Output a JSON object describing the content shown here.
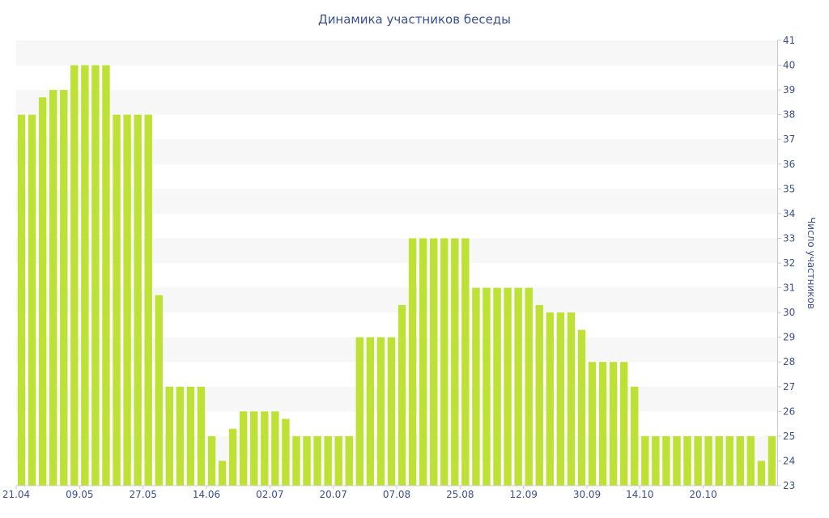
{
  "chart_data": {
    "type": "bar",
    "title": "Динамика участников беседы",
    "ylabel": "Число участников",
    "xlabel": "",
    "ylim": [
      23,
      41
    ],
    "y_ticks": [
      23,
      24,
      25,
      26,
      27,
      28,
      29,
      30,
      31,
      32,
      33,
      34,
      35,
      36,
      37,
      38,
      39,
      40,
      41
    ],
    "x_ticks": [
      {
        "label": "21.04",
        "index": 0
      },
      {
        "label": "09.05",
        "index": 6
      },
      {
        "label": "27.05",
        "index": 12
      },
      {
        "label": "14.06",
        "index": 18
      },
      {
        "label": "02.07",
        "index": 24
      },
      {
        "label": "20.07",
        "index": 30
      },
      {
        "label": "07.08",
        "index": 36
      },
      {
        "label": "25.08",
        "index": 42
      },
      {
        "label": "12.09",
        "index": 48
      },
      {
        "label": "30.09",
        "index": 54
      },
      {
        "label": "14.10",
        "index": 59
      },
      {
        "label": "20.10",
        "index": 65
      }
    ],
    "values": [
      38,
      38,
      38.7,
      39,
      39,
      40,
      40,
      40,
      40,
      38,
      38,
      38,
      38,
      30.7,
      27,
      27,
      27,
      27,
      25,
      24,
      25.3,
      26,
      26,
      26,
      26,
      25.7,
      25,
      25,
      25,
      25,
      25,
      25,
      29,
      29,
      29,
      29,
      30.3,
      33,
      33,
      33,
      33,
      33,
      33,
      31,
      31,
      31,
      31,
      31,
      31,
      30.3,
      30,
      30,
      30,
      29.3,
      28,
      28,
      28,
      28,
      27,
      25,
      25,
      25,
      25,
      25,
      25,
      25,
      25,
      25,
      25,
      25,
      24,
      25
    ],
    "bar_color": "#bde134",
    "grid_band_color": "#f7f7f7",
    "axis_text_color": "#3a4f8f",
    "y_axis_position": "right",
    "legend": "none"
  }
}
